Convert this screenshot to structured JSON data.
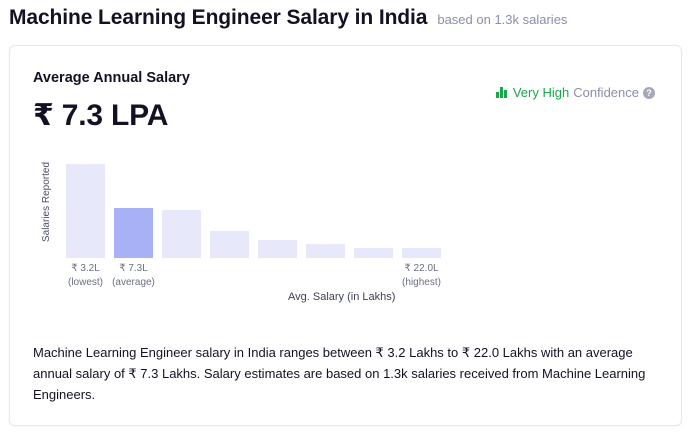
{
  "header": {
    "title": "Machine Learning Engineer Salary in India",
    "subtitle": "based on 1.3k salaries"
  },
  "summary": {
    "label": "Average Annual Salary",
    "value": "₹ 7.3 LPA"
  },
  "confidence": {
    "level": "Very High",
    "word": "Confidence",
    "help": "?",
    "icon": "bar-chart-icon",
    "color": "#1aa64b"
  },
  "chart_data": {
    "type": "bar",
    "ylabel": "Salaries Reported",
    "xlabel": "Avg. Salary (in Lakhs)",
    "values": [
      100,
      53,
      51,
      29,
      19,
      15,
      11,
      11
    ],
    "highlight_index": 1,
    "colors": {
      "bar": "#e7e9fb",
      "highlight": "#a9b1f6"
    },
    "ticks": [
      {
        "index": 0,
        "value": "₹ 3.2L",
        "note": "(lowest)"
      },
      {
        "index": 1,
        "value": "₹ 7.3L",
        "note": "(average)"
      },
      {
        "index": 7,
        "value": "₹ 22.0L",
        "note": "(highest)"
      }
    ]
  },
  "description": "Machine Learning Engineer salary in India ranges between ₹ 3.2 Lakhs to ₹ 22.0 Lakhs with an average annual salary of ₹ 7.3 Lakhs. Salary estimates are based on 1.3k salaries received from Machine Learning Engineers."
}
